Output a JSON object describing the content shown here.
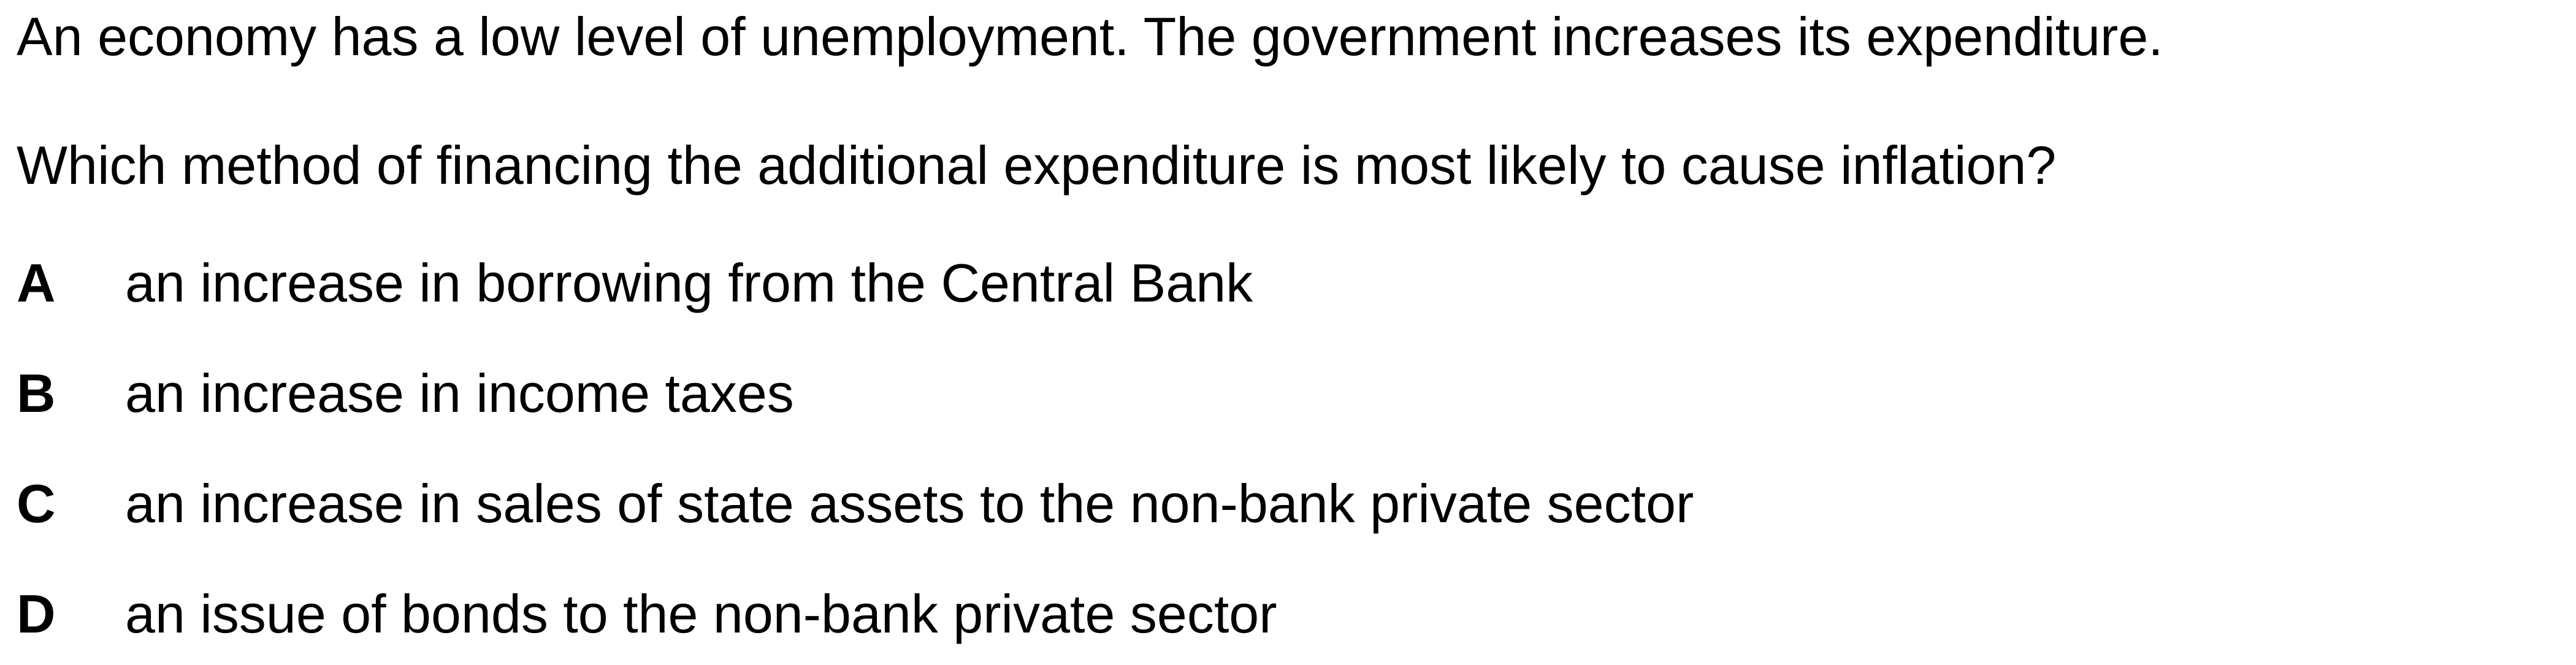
{
  "question": {
    "stem": [
      "An economy has a low level of unemployment. The government increases its expenditure.",
      "Which method of financing the additional expenditure is most likely to cause inflation?"
    ],
    "options": [
      {
        "letter": "A",
        "text": "an increase in borrowing from the Central Bank"
      },
      {
        "letter": "B",
        "text": "an increase in income taxes"
      },
      {
        "letter": "C",
        "text": "an increase in sales of state assets to the non-bank private sector"
      },
      {
        "letter": "D",
        "text": "an issue of bonds to the non-bank private sector"
      }
    ]
  }
}
